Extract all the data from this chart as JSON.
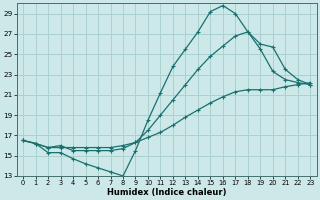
{
  "bg_color": "#cce8e8",
  "grid_color": "#aad0d0",
  "line_color": "#1a7070",
  "xlabel": "Humidex (Indice chaleur)",
  "xlim": [
    -0.5,
    23.5
  ],
  "ylim": [
    13,
    30
  ],
  "yticks": [
    13,
    15,
    17,
    19,
    21,
    23,
    25,
    27,
    29
  ],
  "xticks": [
    0,
    1,
    2,
    3,
    4,
    5,
    6,
    7,
    8,
    9,
    10,
    11,
    12,
    13,
    14,
    15,
    16,
    17,
    18,
    19,
    20,
    21,
    22,
    23
  ],
  "curve1_x": [
    0,
    1,
    2,
    3,
    4,
    5,
    6,
    7,
    8,
    9,
    10,
    11,
    12,
    13,
    14,
    15,
    16,
    17,
    18,
    19,
    20,
    21,
    22,
    23
  ],
  "curve1_y": [
    16.5,
    16.2,
    15.3,
    15.3,
    14.7,
    14.2,
    13.8,
    13.4,
    13.0,
    15.5,
    18.5,
    21.2,
    23.8,
    25.5,
    27.2,
    29.2,
    29.8,
    29.0,
    27.2,
    25.5,
    23.3,
    22.5,
    22.2,
    22.0
  ],
  "curve2_x": [
    0,
    1,
    2,
    3,
    4,
    5,
    6,
    7,
    8,
    9,
    10,
    11,
    12,
    13,
    14,
    15,
    16,
    17,
    18,
    19,
    20,
    21,
    22,
    23
  ],
  "curve2_y": [
    16.5,
    16.2,
    15.8,
    16.0,
    15.5,
    15.5,
    15.5,
    15.5,
    15.7,
    16.3,
    17.5,
    19.0,
    20.5,
    22.0,
    23.5,
    24.8,
    25.8,
    26.8,
    27.2,
    26.0,
    25.7,
    23.5,
    22.5,
    22.0
  ],
  "curve3_x": [
    0,
    1,
    2,
    3,
    4,
    5,
    6,
    7,
    8,
    9,
    10,
    11,
    12,
    13,
    14,
    15,
    16,
    17,
    18,
    19,
    20,
    21,
    22,
    23
  ],
  "curve3_y": [
    16.5,
    16.2,
    15.8,
    15.8,
    15.8,
    15.8,
    15.8,
    15.8,
    16.0,
    16.3,
    16.8,
    17.3,
    18.0,
    18.8,
    19.5,
    20.2,
    20.8,
    21.3,
    21.5,
    21.5,
    21.5,
    21.8,
    22.0,
    22.2
  ]
}
